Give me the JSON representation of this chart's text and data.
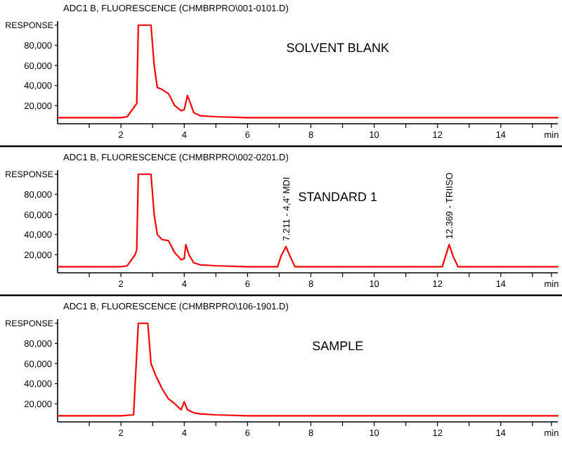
{
  "chart_data": [
    {
      "type": "line",
      "title": "ADC1 B, FLUORESCENCE (CHMBRPRO\\001-0101.D)",
      "ylabel": "RESPONSE",
      "annotations": [
        "SOLVENT BLANK"
      ],
      "xlim": [
        0,
        15.8
      ],
      "ylim": [
        2000,
        104000
      ],
      "xticks": [
        {
          "value": 1,
          "label": null
        },
        2,
        {
          "value": 3,
          "label": null
        },
        4,
        {
          "value": 5,
          "label": null
        },
        6,
        {
          "value": 7,
          "label": null
        },
        8,
        {
          "value": 9,
          "label": null
        },
        10,
        {
          "value": 11,
          "label": null
        },
        12,
        {
          "value": 13,
          "label": null
        },
        14,
        {
          "value": 15,
          "label": null
        },
        {
          "value": 15.6,
          "label": "min"
        }
      ],
      "yticks": [
        {
          "value": 20000,
          "label": "20,000"
        },
        {
          "value": 40000,
          "label": "40,000"
        },
        {
          "value": 60000,
          "label": "60,000"
        },
        {
          "value": 80000,
          "label": "80,000"
        },
        {
          "value": 100000,
          "label": null
        }
      ],
      "series": [
        {
          "color": "#ff0000",
          "x": [
            0,
            2,
            2.2,
            2.45,
            2.5,
            2.55,
            2.95,
            3.05,
            3.15,
            3.3,
            3.5,
            3.7,
            3.9,
            4.0,
            4.1,
            4.2,
            4.3,
            4.5,
            5,
            6,
            15.8
          ],
          "values": [
            8000,
            8000,
            9000,
            20000,
            22000,
            100000,
            100000,
            60000,
            38000,
            36000,
            32000,
            20000,
            15000,
            16000,
            30000,
            22000,
            13000,
            10000,
            9000,
            8000,
            8000
          ]
        }
      ]
    },
    {
      "type": "line",
      "title": "ADC1 B, FLUORESCENCE (CHMBRPRO\\002-0201.D)",
      "ylabel": "RESPONSE",
      "annotations": [
        "STANDARD 1",
        {
          "text": "7.211 - 4,4' MDI",
          "x": 7.211,
          "y": 28000
        },
        {
          "text": "12.369 - TRIISO",
          "x": 12.369,
          "y": 30000
        }
      ],
      "xlim": [
        0,
        15.8
      ],
      "ylim": [
        2000,
        104000
      ],
      "xticks": [
        {
          "value": 1,
          "label": null
        },
        2,
        {
          "value": 3,
          "label": null
        },
        4,
        {
          "value": 5,
          "label": null
        },
        6,
        {
          "value": 7,
          "label": null
        },
        8,
        {
          "value": 9,
          "label": null
        },
        10,
        {
          "value": 11,
          "label": null
        },
        12,
        {
          "value": 13,
          "label": null
        },
        14,
        {
          "value": 15,
          "label": null
        },
        {
          "value": 15.6,
          "label": "min"
        }
      ],
      "yticks": [
        {
          "value": 20000,
          "label": "20,000"
        },
        {
          "value": 40000,
          "label": "40,000"
        },
        {
          "value": 60000,
          "label": "60,000"
        },
        {
          "value": 80000,
          "label": "80,000"
        },
        {
          "value": 100000,
          "label": null
        }
      ],
      "series": [
        {
          "color": "#ff0000",
          "x": [
            0,
            2,
            2.2,
            2.45,
            2.5,
            2.55,
            2.95,
            3.05,
            3.15,
            3.3,
            3.5,
            3.7,
            3.9,
            4.0,
            4.05,
            4.15,
            4.3,
            4.5,
            5,
            6,
            6.95,
            7.05,
            7.211,
            7.35,
            7.5,
            8,
            12.15,
            12.25,
            12.369,
            12.5,
            12.65,
            13,
            15.8
          ],
          "values": [
            8000,
            8000,
            9000,
            20000,
            25000,
            100000,
            100000,
            60000,
            40000,
            35000,
            34000,
            22000,
            15000,
            16000,
            30000,
            20000,
            12000,
            10000,
            9000,
            8000,
            8000,
            18000,
            28000,
            18000,
            8000,
            8000,
            8000,
            18000,
            30000,
            18000,
            8000,
            8000,
            8000
          ]
        }
      ]
    },
    {
      "type": "line",
      "title": "ADC1 B, FLUORESCENCE (CHMBRPRO\\106-1901.D)",
      "ylabel": "RESPONSE",
      "annotations": [
        "SAMPLE"
      ],
      "xlim": [
        0,
        15.8
      ],
      "ylim": [
        2000,
        104000
      ],
      "xticks": [
        {
          "value": 1,
          "label": null
        },
        2,
        {
          "value": 3,
          "label": null
        },
        4,
        {
          "value": 5,
          "label": null
        },
        6,
        {
          "value": 7,
          "label": null
        },
        8,
        {
          "value": 9,
          "label": null
        },
        10,
        {
          "value": 11,
          "label": null
        },
        12,
        {
          "value": 13,
          "label": null
        },
        14,
        {
          "value": 15,
          "label": null
        },
        {
          "value": 15.6,
          "label": "min"
        }
      ],
      "yticks": [
        {
          "value": 20000,
          "label": "20,000"
        },
        {
          "value": 40000,
          "label": "40,000"
        },
        {
          "value": 60000,
          "label": "60,000"
        },
        {
          "value": 80000,
          "label": "80,000"
        },
        {
          "value": 100000,
          "label": null
        }
      ],
      "series": [
        {
          "color": "#ff0000",
          "x": [
            0,
            2,
            2.4,
            2.45,
            2.55,
            2.85,
            2.95,
            3.1,
            3.3,
            3.5,
            3.7,
            3.9,
            4.0,
            4.1,
            4.3,
            4.5,
            5,
            6,
            15.8
          ],
          "values": [
            8000,
            8000,
            9000,
            40000,
            100000,
            100000,
            60000,
            48000,
            35000,
            25000,
            20000,
            14000,
            22000,
            14000,
            11000,
            10000,
            9000,
            8000,
            8000
          ]
        }
      ]
    }
  ]
}
